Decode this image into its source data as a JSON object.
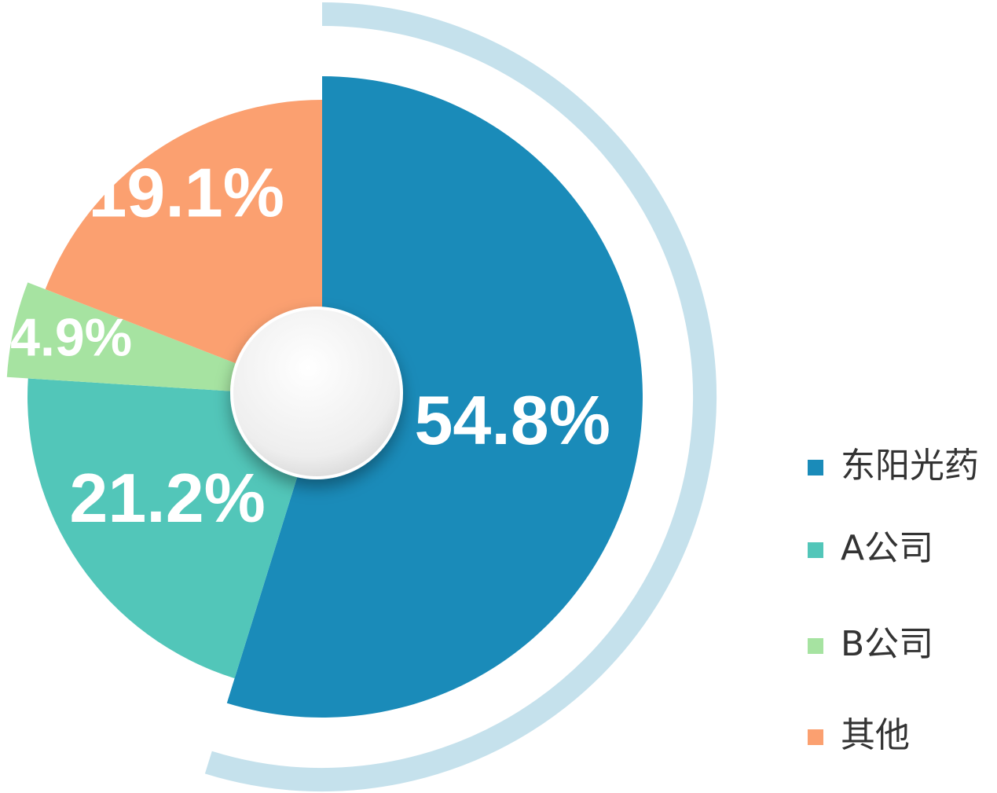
{
  "chart_data": {
    "type": "pie",
    "categories": [
      "东阳光药",
      "A公司",
      "B公司",
      "其他"
    ],
    "values": [
      54.8,
      21.2,
      4.9,
      19.1
    ],
    "value_labels": [
      "54.8%",
      "21.2%",
      "4.9%",
      "19.1%"
    ],
    "colors": [
      "#1a8bb9",
      "#52c6b9",
      "#a6e3a1",
      "#fba070"
    ],
    "legend": "right"
  }
}
